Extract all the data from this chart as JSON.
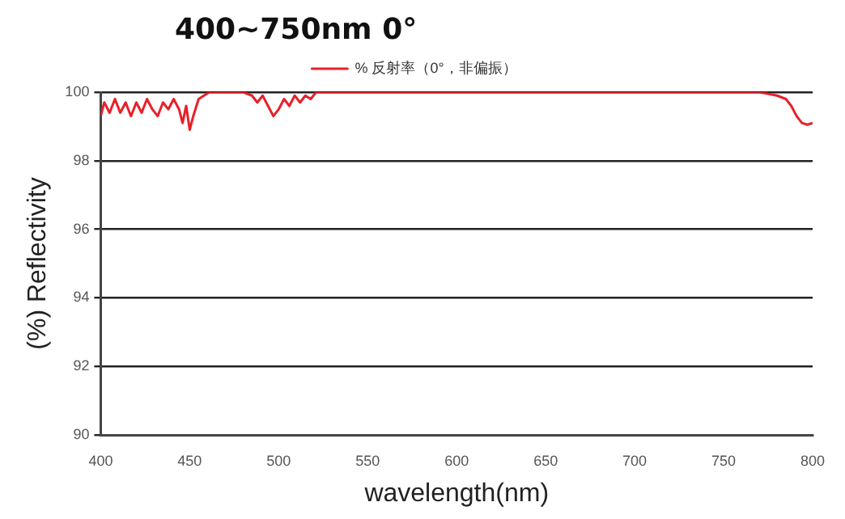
{
  "chart_data": {
    "type": "line",
    "title": "400~750nm 0°",
    "xlabel": "wavelength(nm)",
    "ylabel": "(%) Reflectivity",
    "xlim": [
      400,
      800
    ],
    "xticks": [
      400,
      450,
      500,
      550,
      600,
      650,
      700,
      750,
      800
    ],
    "ylim": [
      90,
      100
    ],
    "yticks": [
      90,
      92,
      94,
      96,
      98,
      100
    ],
    "grid": "y",
    "legend": "top",
    "marker": "none",
    "line_style": "solid",
    "series": [
      {
        "name": "% 反射率（0°，非偏振）",
        "color": "#e8202a",
        "x": [
          400,
          402,
          405,
          408,
          411,
          414,
          417,
          420,
          423,
          426,
          429,
          432,
          435,
          438,
          441,
          444,
          446,
          448,
          450,
          452,
          455,
          458,
          461,
          465,
          470,
          480,
          485,
          488,
          491,
          494,
          497,
          500,
          503,
          506,
          509,
          512,
          515,
          518,
          521,
          530,
          560,
          600,
          650,
          700,
          750,
          770,
          775,
          780,
          785,
          788,
          791,
          794,
          797,
          800
        ],
        "values": [
          99.3,
          99.7,
          99.4,
          99.8,
          99.4,
          99.7,
          99.3,
          99.7,
          99.4,
          99.8,
          99.5,
          99.3,
          99.7,
          99.5,
          99.8,
          99.5,
          99.1,
          99.6,
          98.9,
          99.3,
          99.8,
          99.9,
          100,
          100,
          100,
          100,
          99.9,
          99.7,
          99.9,
          99.6,
          99.3,
          99.5,
          99.8,
          99.6,
          99.9,
          99.7,
          99.9,
          99.8,
          100,
          100,
          100,
          100,
          100,
          100,
          100,
          100,
          99.95,
          99.9,
          99.8,
          99.6,
          99.3,
          99.1,
          99.05,
          99.1
        ]
      }
    ]
  }
}
